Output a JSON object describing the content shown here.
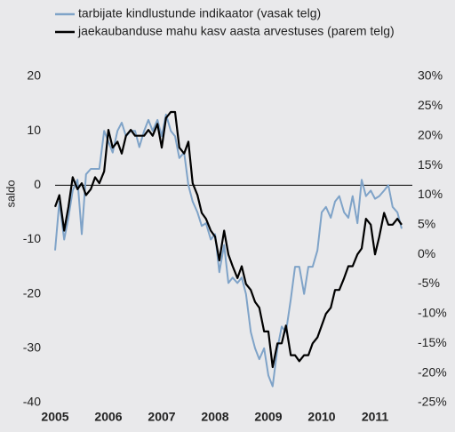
{
  "chart_data": {
    "type": "line",
    "y_label": "saldo",
    "x": [
      2005.0,
      2005.08,
      2005.17,
      2005.25,
      2005.33,
      2005.42,
      2005.5,
      2005.58,
      2005.67,
      2005.75,
      2005.83,
      2005.92,
      2006.0,
      2006.08,
      2006.17,
      2006.25,
      2006.33,
      2006.42,
      2006.5,
      2006.58,
      2006.67,
      2006.75,
      2006.83,
      2006.92,
      2007.0,
      2007.08,
      2007.17,
      2007.25,
      2007.33,
      2007.42,
      2007.5,
      2007.58,
      2007.67,
      2007.75,
      2007.83,
      2007.92,
      2008.0,
      2008.08,
      2008.17,
      2008.25,
      2008.33,
      2008.42,
      2008.5,
      2008.58,
      2008.67,
      2008.75,
      2008.83,
      2008.92,
      2009.0,
      2009.08,
      2009.17,
      2009.25,
      2009.33,
      2009.42,
      2009.5,
      2009.58,
      2009.67,
      2009.75,
      2009.83,
      2009.92,
      2010.0,
      2010.08,
      2010.17,
      2010.25,
      2010.33,
      2010.42,
      2010.5,
      2010.58,
      2010.67,
      2010.75,
      2010.83,
      2010.92,
      2011.0,
      2011.08,
      2011.17,
      2011.25,
      2011.33,
      2011.42,
      2011.5
    ],
    "series": [
      {
        "name": "tarbijate kindlustunde indikaator (vasak telg)",
        "color": "#7fa3c8",
        "axis": "y",
        "values": [
          -12,
          -3,
          -10,
          -6,
          -1,
          1,
          -9,
          2,
          3,
          3,
          3,
          10,
          8,
          6,
          10,
          11.5,
          9,
          10,
          10,
          7,
          10,
          12,
          10,
          12,
          9,
          13,
          10,
          9,
          5,
          6,
          0,
          -3,
          -5,
          -7.5,
          -7,
          -10,
          -9,
          -16,
          -11,
          -18,
          -17,
          -18,
          -17,
          -20,
          -27,
          -30,
          -32,
          -30,
          -35,
          -37,
          -30,
          -26,
          -27,
          -21,
          -15,
          -15,
          -20,
          -15,
          -15,
          -12,
          -5,
          -4,
          -6,
          -3,
          -2,
          -5,
          -6,
          -2,
          -7,
          1,
          -2,
          -1,
          -2.5,
          -2,
          -1,
          0,
          -4,
          -5,
          -8
        ]
      },
      {
        "name": "jaekaubanduse mahu kasv aasta arvestuses (parem telg)",
        "color": "#000000",
        "axis": "y2",
        "values": [
          8,
          10,
          4,
          8,
          13,
          11,
          12,
          10,
          11,
          13,
          12,
          14,
          21,
          18,
          19,
          17,
          20,
          21,
          20,
          20,
          20,
          21,
          20,
          22,
          18,
          23,
          24,
          24,
          18,
          17,
          19,
          12,
          10,
          7,
          6,
          4,
          3,
          -1,
          4,
          0,
          -2,
          -4,
          -2,
          -5,
          -6,
          -8,
          -9,
          -13,
          -13,
          -19,
          -15,
          -15,
          -12,
          -17,
          -17,
          -18,
          -17,
          -17,
          -15,
          -14,
          -12,
          -10,
          -9,
          -6,
          -6,
          -4,
          -2,
          -2,
          0,
          1,
          6,
          5,
          0,
          3,
          7,
          5,
          5,
          6,
          5
        ]
      }
    ],
    "xlim": [
      2005,
      2011.6
    ],
    "xticks": [
      2005,
      2006,
      2007,
      2008,
      2009,
      2010,
      2011
    ],
    "ylim": [
      -40,
      20
    ],
    "yticks": [
      -40,
      -30,
      -20,
      -10,
      0,
      10,
      20
    ],
    "y2lim": [
      -25,
      30
    ],
    "y2ticks": [
      {
        "value": -25,
        "label": "-25%"
      },
      {
        "value": -20,
        "label": "-20%"
      },
      {
        "value": -15,
        "label": "-15%"
      },
      {
        "value": -10,
        "label": "-10%"
      },
      {
        "value": -5,
        "label": "-5%"
      },
      {
        "value": 0,
        "label": "0%"
      },
      {
        "value": 5,
        "label": "5%"
      },
      {
        "value": 10,
        "label": "10%"
      },
      {
        "value": 15,
        "label": "15%"
      },
      {
        "value": 20,
        "label": "20%"
      },
      {
        "value": 25,
        "label": "25%"
      },
      {
        "value": 30,
        "label": "30%"
      }
    ],
    "grid": false
  }
}
